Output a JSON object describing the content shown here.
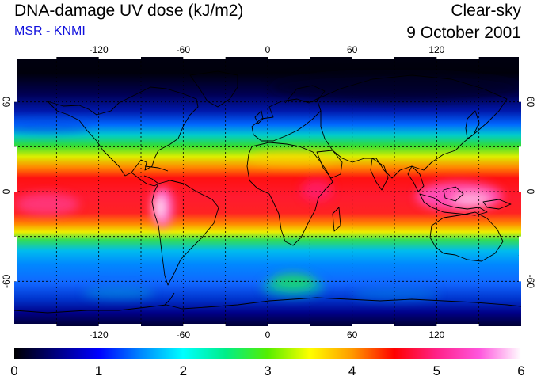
{
  "header": {
    "title": "DNA-damage UV dose (kJ/m2)",
    "source": "MSR - KNMI",
    "condition": "Clear-sky",
    "date": "9 October 2001"
  },
  "map": {
    "lon_ticks": [
      "-120",
      "-60",
      "0",
      "60",
      "120"
    ],
    "lat_ticks": [
      "60",
      "0",
      "-60"
    ],
    "gridline_lons": [
      -150,
      -120,
      -90,
      -60,
      -30,
      0,
      30,
      60,
      90,
      120,
      150
    ],
    "gridline_lats": [
      60,
      30,
      0,
      -30,
      -60
    ]
  },
  "colorbar": {
    "labels": [
      "0",
      "1",
      "2",
      "3",
      "4",
      "5",
      "6"
    ],
    "stops": [
      "#000000",
      "#0000cc",
      "#00aaff",
      "#00eeaa",
      "#44dd00",
      "#ffff00",
      "#ff8800",
      "#ff0000",
      "#ff2288",
      "#ff44cc",
      "#ffffff"
    ]
  }
}
